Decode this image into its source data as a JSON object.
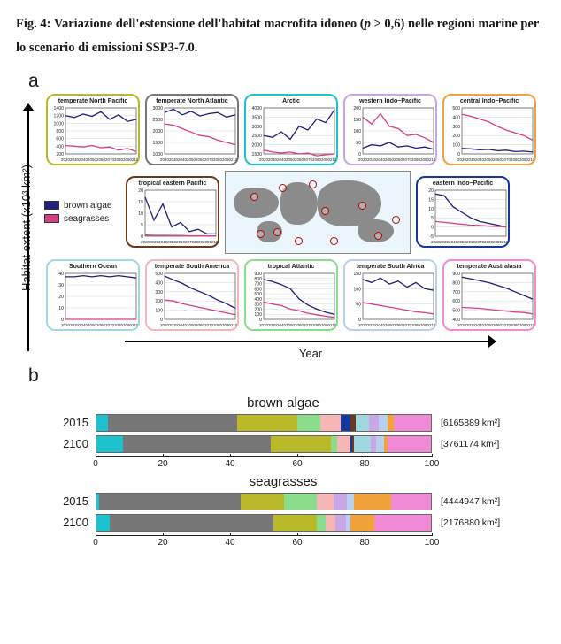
{
  "caption_prefix": "Fig. 4: Variazione dell'estensione dell'habitat macrofita idoneo (",
  "caption_p": "p",
  "caption_mid": "   > 0,6) nelle regioni marine per lo scenario di emissioni SSP3-7.0.",
  "panel_a_letter": "a",
  "panel_b_letter": "b",
  "y_axis_a": "Habitat extent (x10³ km²)",
  "x_axis_a": "Year",
  "legend": {
    "brown": {
      "label": "brown algae",
      "color": "#1f1e7a"
    },
    "sea": {
      "label": "seagrasses",
      "color": "#d63d84"
    }
  },
  "mini_x_years": [
    2020,
    2030,
    2040,
    2050,
    2060,
    2070,
    2080,
    2090,
    2100
  ],
  "minis_top": [
    {
      "title": "temperate North Pacific",
      "border": "#b9b92a",
      "yticks": [
        200,
        400,
        600,
        800,
        1000,
        1200,
        1400
      ],
      "brown": [
        1200,
        1150,
        1240,
        1180,
        1300,
        1100,
        1220,
        1050,
        1100
      ],
      "sea": [
        420,
        400,
        380,
        420,
        360,
        380,
        300,
        340,
        260
      ]
    },
    {
      "title": "temperate North Atlantic",
      "border": "#777",
      "yticks": [
        1000,
        1500,
        2000,
        2500,
        3000
      ],
      "brown": [
        2800,
        2950,
        2700,
        2850,
        2650,
        2750,
        2800,
        2600,
        2700
      ],
      "sea": [
        2300,
        2250,
        2100,
        1950,
        1800,
        1750,
        1600,
        1500,
        1400
      ]
    },
    {
      "title": "Arctic",
      "border": "#1cc3cf",
      "yticks": [
        1500,
        2000,
        2500,
        3000,
        3500,
        4000
      ],
      "brown": [
        2500,
        2400,
        2700,
        2300,
        3000,
        2800,
        3400,
        3200,
        3900
      ],
      "sea": [
        1700,
        1600,
        1550,
        1600,
        1500,
        1550,
        1400,
        1450,
        1500
      ]
    },
    {
      "title": "western Indo−Pacific",
      "border": "#c9a6e6",
      "yticks": [
        0,
        50,
        100,
        150,
        200
      ],
      "brown": [
        25,
        40,
        35,
        50,
        30,
        35,
        25,
        30,
        20
      ],
      "sea": [
        160,
        130,
        175,
        120,
        110,
        80,
        85,
        70,
        50
      ]
    },
    {
      "title": "central Indo−Pacific",
      "border": "#f2a23a",
      "yticks": [
        0,
        100,
        200,
        300,
        400,
        500
      ],
      "brown": [
        60,
        55,
        45,
        50,
        35,
        40,
        25,
        30,
        20
      ],
      "sea": [
        430,
        410,
        380,
        350,
        300,
        260,
        230,
        200,
        150
      ]
    }
  ],
  "mini_mid_left": {
    "title": "tropical eastern Pacific",
    "border": "#6b3a1e",
    "yticks": [
      0,
      5,
      10,
      15,
      20
    ],
    "brown": [
      17,
      7,
      14,
      4,
      6,
      2,
      3,
      1,
      1
    ],
    "sea": [
      0.5,
      0.4,
      0.4,
      0.3,
      0.3,
      0.2,
      0.2,
      0.2,
      0.1
    ]
  },
  "mini_mid_right": {
    "title": "eastern Indo−Pacific",
    "border": "#1438a0",
    "yticks": [
      -5,
      0,
      5,
      10,
      15,
      20
    ],
    "brown": [
      18,
      17,
      11,
      8,
      5,
      3,
      2,
      1,
      0
    ],
    "sea": [
      3,
      2.5,
      2,
      1.5,
      1,
      0.8,
      0.5,
      0.3,
      0
    ]
  },
  "minis_bot": [
    {
      "title": "Southern Ocean",
      "border": "#9fd9df",
      "yticks": [
        0,
        10,
        20,
        30,
        40
      ],
      "brown": [
        37,
        37,
        38,
        37,
        38,
        37,
        38,
        37,
        36
      ],
      "sea": [
        0,
        0,
        0,
        0,
        0,
        0,
        0,
        0,
        0
      ]
    },
    {
      "title": "temperate South America",
      "border": "#f6b6b6",
      "yticks": [
        0,
        100,
        200,
        300,
        400,
        500
      ],
      "brown": [
        470,
        430,
        390,
        340,
        300,
        260,
        210,
        170,
        120
      ],
      "sea": [
        210,
        200,
        170,
        150,
        130,
        110,
        90,
        70,
        50
      ]
    },
    {
      "title": "tropical Atlantic",
      "border": "#8bdc8b",
      "yticks": [
        0,
        100,
        200,
        300,
        400,
        500,
        600,
        700,
        800,
        900
      ],
      "brown": [
        780,
        740,
        680,
        600,
        400,
        280,
        200,
        140,
        100
      ],
      "sea": [
        340,
        300,
        270,
        200,
        170,
        120,
        90,
        60,
        40
      ]
    },
    {
      "title": "temperate South Africa",
      "border": "#b8cfee",
      "yticks": [
        0,
        50,
        100,
        150
      ],
      "brown": [
        130,
        120,
        135,
        115,
        125,
        105,
        120,
        100,
        95
      ],
      "sea": [
        55,
        50,
        45,
        40,
        35,
        30,
        25,
        22,
        18
      ]
    },
    {
      "title": "temperate Australasia",
      "border": "#f28bd7",
      "yticks": [
        400,
        500,
        600,
        700,
        800,
        900
      ],
      "brown": [
        860,
        840,
        820,
        800,
        770,
        740,
        700,
        660,
        620
      ],
      "sea": [
        530,
        525,
        520,
        510,
        500,
        490,
        480,
        475,
        460
      ]
    }
  ],
  "map_rings": [
    {
      "l": 28,
      "t": 24
    },
    {
      "l": 60,
      "t": 14
    },
    {
      "l": 94,
      "t": 10
    },
    {
      "l": 35,
      "t": 66
    },
    {
      "l": 54,
      "t": 64
    },
    {
      "l": 78,
      "t": 74
    },
    {
      "l": 108,
      "t": 40
    },
    {
      "l": 118,
      "t": 74
    },
    {
      "l": 150,
      "t": 34
    },
    {
      "l": 168,
      "t": 68
    },
    {
      "l": 188,
      "t": 50
    }
  ],
  "panel_b": {
    "groups": [
      {
        "title": "brown algae",
        "bars": [
          {
            "year": "2015",
            "total": "[6165889 km²]",
            "segs": [
              {
                "c": "#1cc3cf",
                "w": 3.5
              },
              {
                "c": "#777",
                "w": 38.5
              },
              {
                "c": "#b9b92a",
                "w": 18
              },
              {
                "c": "#8bdc8b",
                "w": 7
              },
              {
                "c": "#f6b6b6",
                "w": 6
              },
              {
                "c": "#1438a0",
                "w": 3
              },
              {
                "c": "#6b3a1e",
                "w": 1.5
              },
              {
                "c": "#9fd9df",
                "w": 4
              },
              {
                "c": "#c9a6e6",
                "w": 3
              },
              {
                "c": "#b8cfee",
                "w": 2.5
              },
              {
                "c": "#f2a23a",
                "w": 2
              },
              {
                "c": "#f28bd7",
                "w": 11
              }
            ]
          },
          {
            "year": "2100",
            "total": "[3761174 km²]",
            "segs": [
              {
                "c": "#1cc3cf",
                "w": 8
              },
              {
                "c": "#777",
                "w": 44
              },
              {
                "c": "#b9b92a",
                "w": 18
              },
              {
                "c": "#8bdc8b",
                "w": 2
              },
              {
                "c": "#f6b6b6",
                "w": 4
              },
              {
                "c": "#1438a0",
                "w": 0.5
              },
              {
                "c": "#6b3a1e",
                "w": 0.5
              },
              {
                "c": "#9fd9df",
                "w": 5
              },
              {
                "c": "#c9a6e6",
                "w": 1.5
              },
              {
                "c": "#b8cfee",
                "w": 2.5
              },
              {
                "c": "#f2a23a",
                "w": 1
              },
              {
                "c": "#f28bd7",
                "w": 13
              }
            ]
          }
        ]
      },
      {
        "title": "seagrasses",
        "bars": [
          {
            "year": "2015",
            "total": "[4444947 km²]",
            "segs": [
              {
                "c": "#1cc3cf",
                "w": 0.7
              },
              {
                "c": "#777",
                "w": 42.3
              },
              {
                "c": "#b9b92a",
                "w": 13
              },
              {
                "c": "#8bdc8b",
                "w": 10
              },
              {
                "c": "#f6b6b6",
                "w": 5
              },
              {
                "c": "#c9a6e6",
                "w": 4
              },
              {
                "c": "#b8cfee",
                "w": 2
              },
              {
                "c": "#f2a23a",
                "w": 11
              },
              {
                "c": "#f28bd7",
                "w": 12
              }
            ]
          },
          {
            "year": "2100",
            "total": "[2176880 km²]",
            "segs": [
              {
                "c": "#1cc3cf",
                "w": 4
              },
              {
                "c": "#777",
                "w": 49
              },
              {
                "c": "#b9b92a",
                "w": 13
              },
              {
                "c": "#8bdc8b",
                "w": 2.5
              },
              {
                "c": "#f6b6b6",
                "w": 3
              },
              {
                "c": "#c9a6e6",
                "w": 3
              },
              {
                "c": "#b8cfee",
                "w": 1.5
              },
              {
                "c": "#f2a23a",
                "w": 7
              },
              {
                "c": "#f28bd7",
                "w": 17
              }
            ]
          }
        ]
      }
    ],
    "xticks": [
      0,
      20,
      40,
      60,
      80,
      100
    ]
  }
}
